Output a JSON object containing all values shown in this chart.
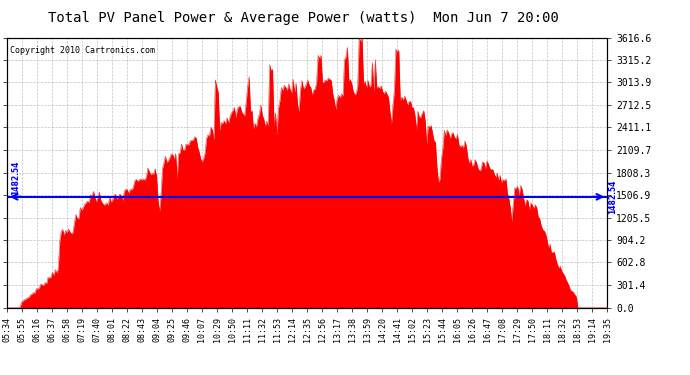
{
  "title": "Total PV Panel Power & Average Power (watts)  Mon Jun 7 20:00",
  "copyright": "Copyright 2010 Cartronics.com",
  "avg_power": 1482.54,
  "y_max": 3616.6,
  "y_ticks": [
    0.0,
    301.4,
    602.8,
    904.2,
    1205.5,
    1506.9,
    1808.3,
    2109.7,
    2411.1,
    2712.5,
    3013.9,
    3315.2,
    3616.6
  ],
  "fill_color": "#FF0000",
  "avg_line_color": "#0000FF",
  "background_color": "#FFFFFF",
  "grid_color": "#BBBBBB",
  "x_labels": [
    "05:34",
    "05:55",
    "06:16",
    "06:37",
    "06:58",
    "07:19",
    "07:40",
    "08:01",
    "08:22",
    "08:43",
    "09:04",
    "09:25",
    "09:46",
    "10:07",
    "10:29",
    "10:50",
    "11:11",
    "11:32",
    "11:53",
    "12:14",
    "12:35",
    "12:56",
    "13:17",
    "13:38",
    "13:59",
    "14:20",
    "14:41",
    "15:02",
    "15:23",
    "15:44",
    "16:05",
    "16:26",
    "16:47",
    "17:08",
    "17:29",
    "17:50",
    "18:11",
    "18:32",
    "18:53",
    "19:14",
    "19:35"
  ],
  "title_fontsize": 10,
  "tick_fontsize": 7,
  "xlabel_fontsize": 6,
  "copyright_fontsize": 6
}
